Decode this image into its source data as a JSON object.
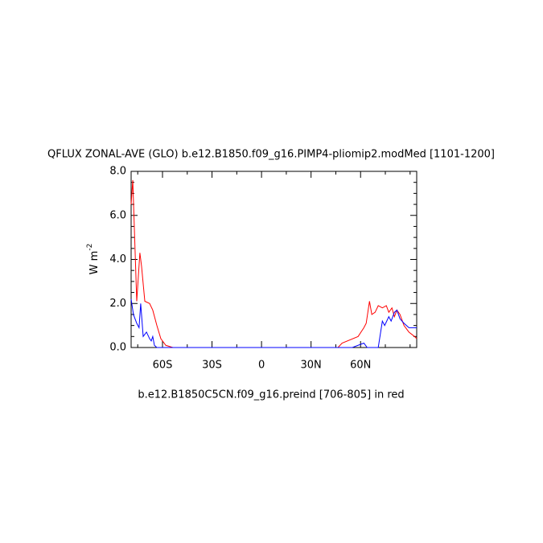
{
  "chart_data": {
    "type": "line",
    "title": "QFLUX ZONAL-AVE (GLO) b.e12.B1850.f09_g16.PIMP4-pliomip2.modMed [1101-1200]",
    "subtitle": "b.e12.B1850C5CN.f09_g16.preind [706-805] in red",
    "y_label": {
      "text": "W m",
      "superscript": "-2"
    },
    "xlim": [
      -79,
      94
    ],
    "xticks": [
      {
        "value": -60,
        "label": "60S"
      },
      {
        "value": -30,
        "label": "30S"
      },
      0,
      {
        "value": 30,
        "label": "30N"
      },
      {
        "value": 60,
        "label": "60N"
      }
    ],
    "ylim": [
      0,
      8
    ],
    "yticks": [
      {
        "value": 0,
        "label": "0.0"
      },
      {
        "value": 2,
        "label": "2.0"
      },
      {
        "value": 4,
        "label": "4.0"
      },
      {
        "value": 6,
        "label": "6.0"
      },
      {
        "value": 8,
        "label": "8.0"
      }
    ],
    "grid": false,
    "series": [
      {
        "color": "#ff0000",
        "x": [
          -79,
          -78,
          -75.6,
          -73.7,
          -72.7,
          -70.7,
          -67.8,
          -65.9,
          -63.4,
          -61,
          -58,
          -53.7,
          46.3,
          48.8,
          58.5,
          62,
          63.4,
          65.4,
          66.8,
          68.8,
          70.7,
          73.2,
          75.6,
          77.1,
          79,
          80.5,
          82,
          83.9,
          86.3,
          89.3,
          92.7,
          94
        ],
        "values": [
          6.5,
          7.6,
          2.1,
          4.3,
          3.7,
          2.1,
          2.0,
          1.7,
          1.0,
          0.4,
          0.1,
          0,
          0,
          0.2,
          0.5,
          0.9,
          1.1,
          2.1,
          1.5,
          1.6,
          1.9,
          1.8,
          1.9,
          1.6,
          1.8,
          1.4,
          1.7,
          1.5,
          1.0,
          0.7,
          0.5,
          0.4
        ]
      },
      {
        "color": "#0000ff",
        "x": [
          -79,
          -77.6,
          -75.6,
          -74.2,
          -73.2,
          -71.7,
          -69.7,
          -67.8,
          -66.8,
          -65.9,
          -64.9,
          -63.4,
          43,
          55,
          62,
          64,
          70.7,
          73.2,
          74.6,
          77.1,
          78.5,
          80.5,
          82,
          83.9,
          86.3,
          89.3,
          94
        ],
        "values": [
          2.2,
          1.5,
          1.1,
          0.9,
          2.0,
          0.5,
          0.7,
          0.4,
          0.3,
          0.5,
          0.1,
          0,
          0,
          0,
          0.2,
          0,
          0,
          1.2,
          1.0,
          1.4,
          1.2,
          1.6,
          1.7,
          1.3,
          1.1,
          0.9,
          0.9
        ]
      }
    ]
  }
}
